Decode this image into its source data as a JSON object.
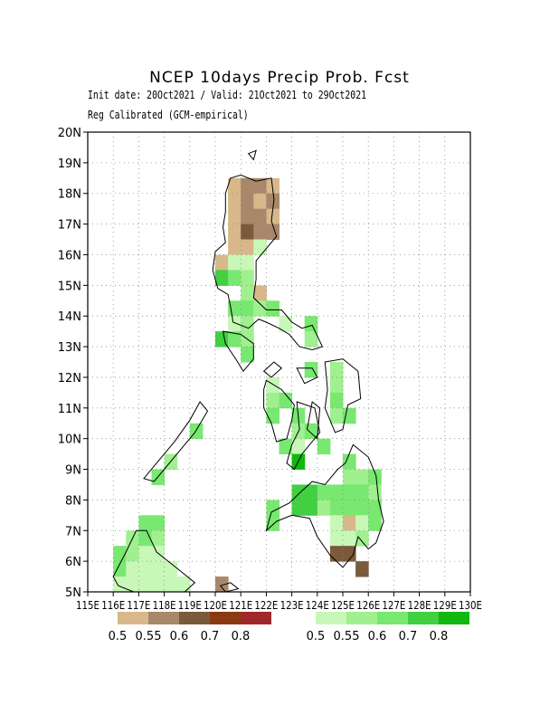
{
  "title": "NCEP 10days Precip Prob. Fcst",
  "subtitle": "Init date: 20Oct2021 / Valid: 21Oct2021 to 29Oct2021",
  "calibration": "Reg Calibrated (GCM-empirical)",
  "y_axis_labels": [
    "5N",
    "6N",
    "7N",
    "8N",
    "9N",
    "10N",
    "11N",
    "12N",
    "13N",
    "14N",
    "15N",
    "16N",
    "17N",
    "18N",
    "19N",
    "20N"
  ],
  "x_axis_labels": [
    "115E",
    "116E",
    "117E",
    "118E",
    "119E",
    "120E",
    "121E",
    "122E",
    "123E",
    "124E",
    "125E",
    "126E",
    "127E",
    "128E",
    "129E",
    "130E"
  ],
  "legend_below": {
    "colors": [
      "#d8b88a",
      "#a8876a",
      "#7a5a3a",
      "#8b3a10",
      "#a0282a"
    ],
    "labels": [
      "0.5",
      "0.55",
      "0.6",
      "0.7",
      "0.8"
    ]
  },
  "legend_above": {
    "colors": [
      "#c8f8b8",
      "#a0f090",
      "#78e870",
      "#40d040",
      "#10b810"
    ],
    "labels": [
      "0.5",
      "0.55",
      "0.6",
      "0.7",
      "0.8"
    ]
  }
}
